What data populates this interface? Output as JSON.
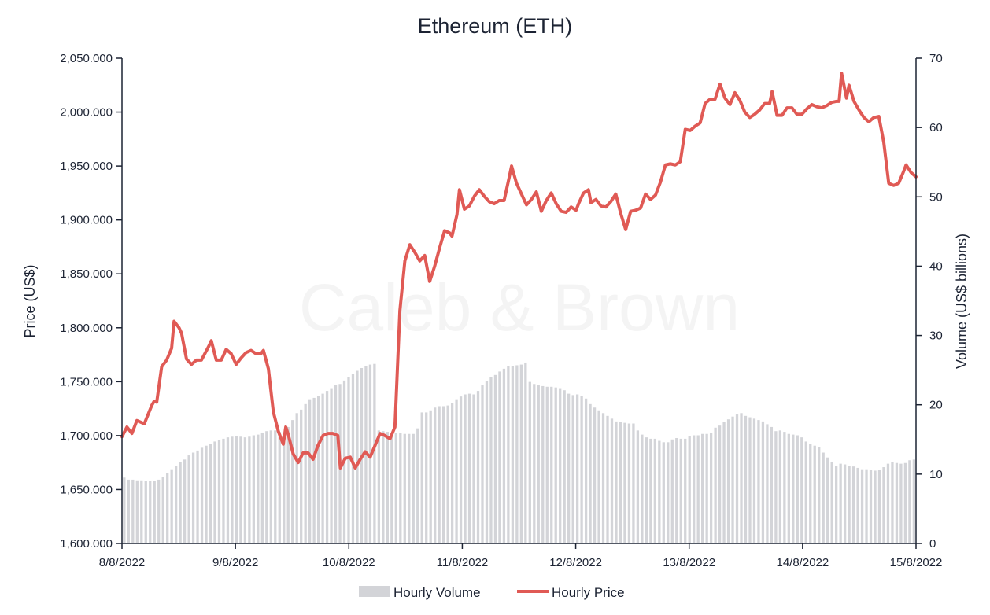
{
  "chart_data": {
    "type": "line",
    "title": "Ethereum (ETH)",
    "watermark": "Caleb & Brown",
    "y_left": {
      "label": "Price (US$)",
      "ylim": [
        1600,
        2050
      ],
      "ticks": [
        1600,
        1650,
        1700,
        1750,
        1800,
        1850,
        1900,
        1950,
        2000,
        2050
      ],
      "tick_labels": [
        "1,600.000",
        "1,650.000",
        "1,700.000",
        "1,750.000",
        "1,800.000",
        "1,850.000",
        "1,900.000",
        "1,950.000",
        "2,000.000",
        "2,050.000"
      ]
    },
    "y_right": {
      "label": "Volume (US$ billions)",
      "ylim": [
        0,
        70
      ],
      "ticks": [
        0,
        10,
        20,
        30,
        40,
        50,
        60,
        70
      ],
      "tick_labels": [
        "0",
        "10",
        "20",
        "30",
        "40",
        "50",
        "60",
        "70"
      ]
    },
    "x_axis": {
      "range": [
        "8/8/2022",
        "15/8/2022"
      ],
      "tick_labels": [
        "8/8/2022",
        "9/8/2022",
        "10/8/2022",
        "11/8/2022",
        "12/8/2022",
        "13/8/2022",
        "14/8/2022",
        "15/8/2022"
      ]
    },
    "legend": {
      "position": "bottom",
      "items": [
        "Hourly Volume",
        "Hourly Price"
      ]
    },
    "colors": {
      "price": "#e05a55",
      "volume": "#d3d4d8",
      "axis": "#1c2333"
    },
    "series": [
      {
        "name": "Hourly Volume",
        "type": "bar",
        "axis": "right",
        "unit": "US$ billions",
        "values": [
          9.5,
          9.2,
          9.2,
          9.1,
          9.1,
          9.0,
          9.0,
          9.0,
          9.2,
          9.6,
          10.1,
          10.7,
          11.2,
          11.7,
          12.1,
          12.7,
          13.1,
          13.4,
          13.8,
          14.1,
          14.4,
          14.7,
          14.9,
          15.1,
          15.3,
          15.4,
          15.5,
          15.4,
          15.3,
          15.4,
          15.6,
          15.7,
          16.0,
          16.2,
          16.3,
          16.3,
          16.1,
          15.9,
          16.8,
          17.8,
          18.8,
          19.3,
          20.1,
          20.8,
          21.0,
          21.3,
          21.6,
          22.0,
          22.4,
          22.8,
          23.0,
          23.5,
          24.0,
          24.4,
          24.9,
          25.3,
          25.6,
          25.8,
          25.9,
          16.3,
          16.2,
          16.1,
          16.0,
          15.9,
          15.9,
          15.8,
          15.8,
          15.8,
          16.6,
          18.9,
          18.9,
          19.2,
          19.6,
          19.8,
          19.8,
          19.9,
          20.3,
          20.8,
          21.2,
          21.5,
          21.6,
          21.5,
          22.0,
          22.8,
          23.4,
          24.0,
          24.3,
          24.8,
          25.2,
          25.6,
          25.6,
          25.7,
          25.8,
          26.1,
          23.3,
          23.0,
          22.8,
          22.7,
          22.6,
          22.6,
          22.5,
          22.4,
          22.1,
          21.6,
          21.4,
          21.5,
          21.3,
          20.9,
          20.1,
          19.6,
          19.2,
          18.8,
          18.4,
          18.0,
          17.6,
          17.5,
          17.4,
          17.3,
          17.3,
          16.3,
          15.7,
          15.3,
          15.1,
          15.1,
          14.8,
          14.6,
          14.6,
          15.0,
          15.2,
          15.1,
          15.1,
          15.5,
          15.6,
          15.6,
          15.8,
          15.8,
          16.0,
          16.7,
          17.0,
          17.5,
          17.9,
          18.3,
          18.6,
          18.8,
          18.4,
          18.2,
          18.0,
          17.8,
          17.6,
          17.2,
          16.8,
          16.2,
          16.3,
          16.1,
          15.8,
          15.7,
          15.6,
          15.3,
          14.7,
          14.3,
          14.1,
          13.9,
          13.1,
          12.4,
          11.8,
          11.2,
          11.5,
          11.4,
          11.2,
          11.1,
          10.9,
          10.7,
          10.7,
          10.6,
          10.5,
          10.6,
          11.0,
          11.5,
          11.7,
          11.6,
          11.5,
          11.6,
          12.0,
          12.1
        ]
      },
      {
        "name": "Hourly Price",
        "type": "line",
        "axis": "left",
        "unit": "US$",
        "values": [
          [
            0,
            1699
          ],
          [
            2,
            1708
          ],
          [
            4,
            1702
          ],
          [
            6,
            1714
          ],
          [
            9,
            1711
          ],
          [
            12,
            1728
          ],
          [
            13,
            1732
          ],
          [
            14,
            1731
          ],
          [
            16,
            1764
          ],
          [
            18,
            1770
          ],
          [
            20,
            1781
          ],
          [
            21,
            1806
          ],
          [
            23,
            1800
          ],
          [
            24,
            1795
          ],
          [
            26,
            1771
          ],
          [
            28,
            1766
          ],
          [
            30,
            1770
          ],
          [
            32,
            1770
          ],
          [
            35,
            1783
          ],
          [
            36,
            1788
          ],
          [
            38,
            1770
          ],
          [
            40,
            1770
          ],
          [
            42,
            1780
          ],
          [
            44,
            1776
          ],
          [
            46,
            1766
          ],
          [
            48,
            1772
          ],
          [
            50,
            1777
          ],
          [
            52,
            1779
          ],
          [
            54,
            1776
          ],
          [
            56,
            1776
          ],
          [
            57,
            1779
          ],
          [
            59,
            1762
          ],
          [
            61,
            1722
          ],
          [
            63,
            1704
          ],
          [
            65,
            1692
          ],
          [
            66,
            1708
          ],
          [
            67,
            1701
          ],
          [
            69,
            1683
          ],
          [
            71,
            1675
          ],
          [
            73,
            1684
          ],
          [
            75,
            1684
          ],
          [
            77,
            1678
          ],
          [
            79,
            1691
          ],
          [
            81,
            1700
          ],
          [
            83,
            1702
          ],
          [
            85,
            1702
          ],
          [
            87,
            1700
          ],
          [
            88,
            1670
          ],
          [
            90,
            1679
          ],
          [
            92,
            1680
          ],
          [
            94,
            1670
          ],
          [
            96,
            1678
          ],
          [
            98,
            1685
          ],
          [
            100,
            1680
          ],
          [
            102,
            1691
          ],
          [
            104,
            1702
          ],
          [
            106,
            1700
          ],
          [
            108,
            1697
          ],
          [
            110,
            1708
          ],
          [
            112,
            1816
          ],
          [
            114,
            1862
          ],
          [
            116,
            1877
          ],
          [
            118,
            1870
          ],
          [
            120,
            1862
          ],
          [
            122,
            1867
          ],
          [
            124,
            1843
          ],
          [
            126,
            1857
          ],
          [
            128,
            1874
          ],
          [
            130,
            1890
          ],
          [
            132,
            1888
          ],
          [
            133,
            1885
          ],
          [
            135,
            1905
          ],
          [
            136,
            1928
          ],
          [
            138,
            1910
          ],
          [
            140,
            1913
          ],
          [
            142,
            1922
          ],
          [
            144,
            1928
          ],
          [
            146,
            1922
          ],
          [
            148,
            1917
          ],
          [
            150,
            1915
          ],
          [
            152,
            1918
          ],
          [
            154,
            1918
          ],
          [
            156,
            1939
          ],
          [
            157,
            1950
          ],
          [
            159,
            1934
          ],
          [
            161,
            1924
          ],
          [
            163,
            1914
          ],
          [
            165,
            1919
          ],
          [
            167,
            1926
          ],
          [
            169,
            1908
          ],
          [
            171,
            1918
          ],
          [
            173,
            1925
          ],
          [
            175,
            1915
          ],
          [
            177,
            1908
          ],
          [
            179,
            1907
          ],
          [
            181,
            1912
          ],
          [
            183,
            1909
          ],
          [
            184,
            1915
          ],
          [
            186,
            1925
          ],
          [
            188,
            1928
          ],
          [
            189,
            1916
          ],
          [
            191,
            1919
          ],
          [
            193,
            1913
          ],
          [
            195,
            1912
          ],
          [
            197,
            1917
          ],
          [
            199,
            1924
          ],
          [
            201,
            1906
          ],
          [
            203,
            1891
          ],
          [
            205,
            1908
          ],
          [
            207,
            1909
          ],
          [
            209,
            1911
          ],
          [
            211,
            1924
          ],
          [
            213,
            1919
          ],
          [
            215,
            1923
          ],
          [
            217,
            1935
          ],
          [
            219,
            1951
          ],
          [
            221,
            1952
          ],
          [
            223,
            1951
          ],
          [
            225,
            1954
          ],
          [
            227,
            1984
          ],
          [
            229,
            1983
          ],
          [
            231,
            1987
          ],
          [
            233,
            1990
          ],
          [
            235,
            2008
          ],
          [
            237,
            2012
          ],
          [
            239,
            2012
          ],
          [
            241,
            2026
          ],
          [
            243,
            2013
          ],
          [
            245,
            2007
          ],
          [
            247,
            2018
          ],
          [
            249,
            2011
          ],
          [
            251,
            2000
          ],
          [
            253,
            1995
          ],
          [
            255,
            1998
          ],
          [
            257,
            2002
          ],
          [
            259,
            2008
          ],
          [
            261,
            2008
          ],
          [
            262,
            2019
          ],
          [
            264,
            1997
          ],
          [
            266,
            1997
          ],
          [
            268,
            2004
          ],
          [
            270,
            2004
          ],
          [
            272,
            1998
          ],
          [
            274,
            1998
          ],
          [
            276,
            2003
          ],
          [
            278,
            2007
          ],
          [
            280,
            2005
          ],
          [
            282,
            2004
          ],
          [
            284,
            2006
          ],
          [
            286,
            2009
          ],
          [
            288,
            2010
          ],
          [
            289,
            2010
          ],
          [
            290,
            2036
          ],
          [
            292,
            2013
          ],
          [
            293,
            2025
          ],
          [
            295,
            2010
          ],
          [
            297,
            2002
          ],
          [
            299,
            1995
          ],
          [
            301,
            1991
          ],
          [
            303,
            1995
          ],
          [
            305,
            1996
          ],
          [
            307,
            1972
          ],
          [
            309,
            1934
          ],
          [
            311,
            1932
          ],
          [
            313,
            1934
          ],
          [
            315,
            1945
          ],
          [
            316,
            1951
          ],
          [
            318,
            1944
          ],
          [
            320,
            1940
          ]
        ]
      }
    ]
  }
}
